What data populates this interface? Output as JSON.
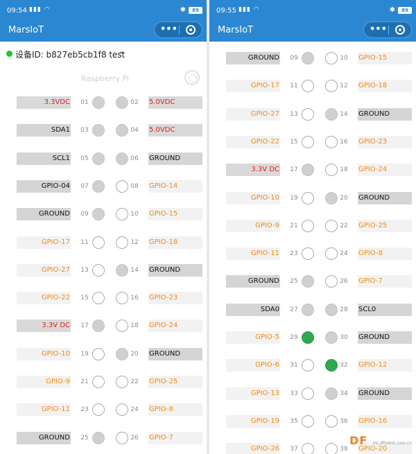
{
  "colors": {
    "header_bg": "#2b87d1",
    "label_red": "#e02020",
    "label_orange": "#f08a15",
    "label_dark": "#111111",
    "pin_active": "#2fa84f",
    "online_dot": "#21c23a"
  },
  "screens": [
    {
      "status": {
        "time": "09:54",
        "signal": "4G",
        "battery": "89",
        "icons": [
          "bluetooth-icon",
          "wifi-icon",
          "signal-icon",
          "battery-icon"
        ]
      },
      "app_title": "MarsIoT",
      "capsule": {
        "more": "•••",
        "icons": [
          "more-icon",
          "close-target-icon"
        ]
      },
      "device": {
        "label": "设备ID: b827eb5cb1f8 test",
        "online": true,
        "chevron": "⌄"
      },
      "board_label": "Raspberry Pi",
      "pins": [
        {
          "left_label": "3.3VDC",
          "left_type": "red",
          "left_num": "01",
          "left_pin": "filled",
          "right_num": "02",
          "right_pin": "filled",
          "right_label": "5.0VDC",
          "right_type": "red"
        },
        {
          "left_label": "SDA1",
          "left_type": "dark",
          "left_num": "03",
          "left_pin": "filled",
          "right_num": "04",
          "right_pin": "filled",
          "right_label": "5.0VDC",
          "right_type": "red"
        },
        {
          "left_label": "SCL1",
          "left_type": "dark",
          "left_num": "05",
          "left_pin": "filled",
          "right_num": "06",
          "right_pin": "filled",
          "right_label": "GROUND",
          "right_type": "dark"
        },
        {
          "left_label": "GPIO-04",
          "left_type": "dark",
          "left_num": "07",
          "left_pin": "filled",
          "right_num": "08",
          "right_pin": "hollow",
          "right_label": "GPIO-14",
          "right_type": "orange"
        },
        {
          "left_label": "GROUND",
          "left_type": "dark",
          "left_num": "09",
          "left_pin": "filled",
          "right_num": "10",
          "right_pin": "hollow",
          "right_label": "GPIO-15",
          "right_type": "orange"
        },
        {
          "left_label": "GPIO-17",
          "left_type": "orange",
          "left_num": "11",
          "left_pin": "hollow",
          "right_num": "12",
          "right_pin": "hollow",
          "right_label": "GPIO-18",
          "right_type": "orange"
        },
        {
          "left_label": "GPIO-27",
          "left_type": "orange",
          "left_num": "13",
          "left_pin": "hollow",
          "right_num": "14",
          "right_pin": "filled",
          "right_label": "GROUND",
          "right_type": "dark"
        },
        {
          "left_label": "GPIO-22",
          "left_type": "orange",
          "left_num": "15",
          "left_pin": "hollow",
          "right_num": "16",
          "right_pin": "hollow",
          "right_label": "GPIO-23",
          "right_type": "orange"
        },
        {
          "left_label": "3.3V DC",
          "left_type": "red",
          "left_num": "17",
          "left_pin": "filled",
          "right_num": "18",
          "right_pin": "hollow",
          "right_label": "GPIO-24",
          "right_type": "orange"
        },
        {
          "left_label": "GPIO-10",
          "left_type": "orange",
          "left_num": "19",
          "left_pin": "hollow",
          "right_num": "20",
          "right_pin": "filled",
          "right_label": "GROUND",
          "right_type": "dark"
        },
        {
          "left_label": "GPIO-9",
          "left_type": "orange",
          "left_num": "21",
          "left_pin": "hollow",
          "right_num": "22",
          "right_pin": "hollow",
          "right_label": "GPIO-25",
          "right_type": "orange"
        },
        {
          "left_label": "GPIO-11",
          "left_type": "orange",
          "left_num": "23",
          "left_pin": "hollow",
          "right_num": "24",
          "right_pin": "hollow",
          "right_label": "GPIO-8",
          "right_type": "orange"
        },
        {
          "left_label": "GROUND",
          "left_type": "dark",
          "left_num": "25",
          "left_pin": "filled",
          "right_num": "26",
          "right_pin": "hollow",
          "right_label": "GPIO-7",
          "right_type": "orange"
        }
      ]
    },
    {
      "status": {
        "time": "09:55",
        "signal": "4G",
        "battery": "89",
        "icons": [
          "bluetooth-icon",
          "wifi-icon",
          "signal-icon",
          "battery-icon"
        ]
      },
      "app_title": "MarsIoT",
      "capsule": {
        "more": "•••",
        "icons": [
          "more-icon",
          "close-target-icon"
        ]
      },
      "pins": [
        {
          "left_label": "GROUND",
          "left_type": "dark",
          "left_num": "09",
          "left_pin": "filled",
          "right_num": "10",
          "right_pin": "hollow",
          "right_label": "GPIO-15",
          "right_type": "orange"
        },
        {
          "left_label": "GPIO-17",
          "left_type": "orange",
          "left_num": "11",
          "left_pin": "hollow",
          "right_num": "12",
          "right_pin": "hollow",
          "right_label": "GPIO-18",
          "right_type": "orange"
        },
        {
          "left_label": "GPIO-27",
          "left_type": "orange",
          "left_num": "13",
          "left_pin": "hollow",
          "right_num": "14",
          "right_pin": "filled",
          "right_label": "GROUND",
          "right_type": "dark"
        },
        {
          "left_label": "GPIO-22",
          "left_type": "orange",
          "left_num": "15",
          "left_pin": "hollow",
          "right_num": "16",
          "right_pin": "hollow",
          "right_label": "GPIO-23",
          "right_type": "orange"
        },
        {
          "left_label": "3.3V DC",
          "left_type": "red",
          "left_num": "17",
          "left_pin": "filled",
          "right_num": "18",
          "right_pin": "hollow",
          "right_label": "GPIO-24",
          "right_type": "orange"
        },
        {
          "left_label": "GPIO-10",
          "left_type": "orange",
          "left_num": "19",
          "left_pin": "hollow",
          "right_num": "20",
          "right_pin": "filled",
          "right_label": "GROUND",
          "right_type": "dark"
        },
        {
          "left_label": "GPIO-9",
          "left_type": "orange",
          "left_num": "21",
          "left_pin": "hollow",
          "right_num": "22",
          "right_pin": "hollow",
          "right_label": "GPIO-25",
          "right_type": "orange"
        },
        {
          "left_label": "GPIO-11",
          "left_type": "orange",
          "left_num": "23",
          "left_pin": "hollow",
          "right_num": "24",
          "right_pin": "hollow",
          "right_label": "GPIO-8",
          "right_type": "orange"
        },
        {
          "left_label": "GROUND",
          "left_type": "dark",
          "left_num": "25",
          "left_pin": "filled",
          "right_num": "26",
          "right_pin": "hollow",
          "right_label": "GPIO-7",
          "right_type": "orange"
        },
        {
          "left_label": "SDA0",
          "left_type": "dark",
          "left_num": "27",
          "left_pin": "filled",
          "right_num": "28",
          "right_pin": "filled",
          "right_label": "SCL0",
          "right_type": "dark"
        },
        {
          "left_label": "GPIO-5",
          "left_type": "orange",
          "left_num": "29",
          "left_pin": "on",
          "right_num": "30",
          "right_pin": "filled",
          "right_label": "GROUND",
          "right_type": "dark"
        },
        {
          "left_label": "GPIO-6",
          "left_type": "orange",
          "left_num": "31",
          "left_pin": "hollow",
          "right_num": "32",
          "right_pin": "on",
          "right_label": "GPIO-12",
          "right_type": "orange"
        },
        {
          "left_label": "GPIO-13",
          "left_type": "orange",
          "left_num": "33",
          "left_pin": "hollow",
          "right_num": "34",
          "right_pin": "filled",
          "right_label": "GROUND",
          "right_type": "dark"
        },
        {
          "left_label": "GPIO-19",
          "left_type": "orange",
          "left_num": "35",
          "left_pin": "hollow",
          "right_num": "36",
          "right_pin": "hollow",
          "right_label": "GPIO-16",
          "right_type": "orange"
        },
        {
          "left_label": "GPIO-26",
          "left_type": "orange",
          "left_num": "37",
          "left_pin": "hollow",
          "right_num": "38",
          "right_pin": "hollow",
          "right_label": "GPIO-20",
          "right_type": "orange"
        }
      ]
    }
  ],
  "watermark": {
    "text": "DF",
    "subtext": "mc.dfrobot.com.cn"
  }
}
